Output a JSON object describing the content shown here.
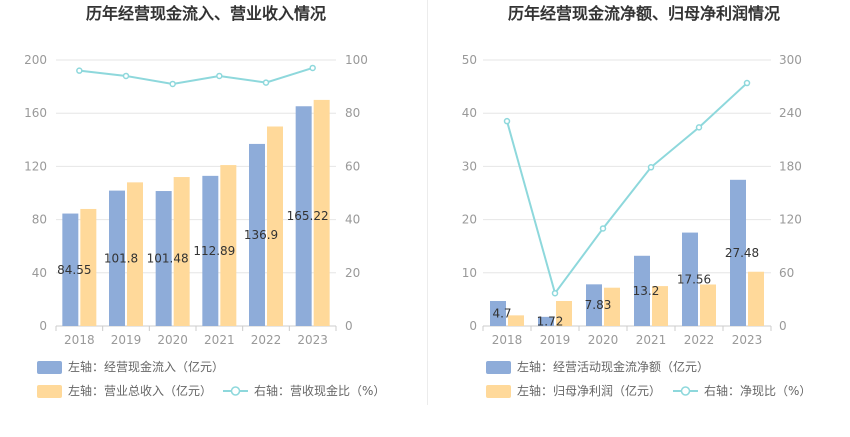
{
  "colors": {
    "bar_blue": "#8eacd9",
    "bar_yellow": "#ffd99a",
    "line_cyan": "#8ed8dc",
    "axis_text": "#999999",
    "title_text": "#333333",
    "grid": "#e6e6e6"
  },
  "chart_data": [
    {
      "type": "bar",
      "title": "历年经营现金流入、营业收入情况",
      "categories": [
        "2018",
        "2019",
        "2020",
        "2021",
        "2022",
        "2023"
      ],
      "left_axis": {
        "ticks": [
          "0",
          "40",
          "80",
          "120",
          "160",
          "200"
        ],
        "ylim": [
          0,
          200
        ]
      },
      "right_axis": {
        "ticks": [
          "0",
          "20",
          "40",
          "60",
          "80",
          "100"
        ],
        "ylim": [
          0,
          100
        ]
      },
      "series": [
        {
          "name": "左轴：经营现金流入（亿元）",
          "kind": "bar",
          "axis": "left",
          "color": "#8eacd9",
          "values": [
            84.55,
            101.8,
            101.48,
            112.89,
            136.9,
            165.22
          ],
          "labels": [
            "84.55",
            "101.8",
            "101.48",
            "112.89",
            "136.9",
            "165.22"
          ]
        },
        {
          "name": "左轴：营业总收入（亿元）",
          "kind": "bar",
          "axis": "left",
          "color": "#ffd99a",
          "values": [
            88,
            108,
            112,
            121,
            150,
            170
          ]
        },
        {
          "name": "右轴：营收现金比（%）",
          "kind": "line",
          "axis": "right",
          "color": "#8ed8dc",
          "values": [
            96,
            94,
            91,
            94,
            91.5,
            97
          ]
        }
      ],
      "legend": "bottom",
      "grid": true
    },
    {
      "type": "bar",
      "title": "历年经营现金流净额、归母净利润情况",
      "categories": [
        "2018",
        "2019",
        "2020",
        "2021",
        "2022",
        "2023"
      ],
      "left_axis": {
        "ticks": [
          "0",
          "10",
          "20",
          "30",
          "40",
          "50"
        ],
        "ylim": [
          0,
          50
        ]
      },
      "right_axis": {
        "ticks": [
          "0",
          "60",
          "120",
          "180",
          "240",
          "300"
        ],
        "ylim": [
          0,
          300
        ]
      },
      "series": [
        {
          "name": "左轴：经营活动现金流净额（亿元）",
          "kind": "bar",
          "axis": "left",
          "color": "#8eacd9",
          "values": [
            4.7,
            1.72,
            7.83,
            13.2,
            17.56,
            27.48
          ],
          "labels": [
            "4.7",
            "1.72",
            "7.83",
            "13.2",
            "17.56",
            "27.48"
          ]
        },
        {
          "name": "左轴：归母净利润（亿元）",
          "kind": "bar",
          "axis": "left",
          "color": "#ffd99a",
          "values": [
            2.0,
            4.7,
            7.2,
            7.5,
            7.8,
            10.2
          ]
        },
        {
          "name": "右轴：净现比（%）",
          "kind": "line",
          "axis": "right",
          "color": "#8ed8dc",
          "values": [
            231,
            37,
            110,
            179,
            224,
            274
          ]
        }
      ],
      "legend": "bottom",
      "grid": true
    }
  ]
}
